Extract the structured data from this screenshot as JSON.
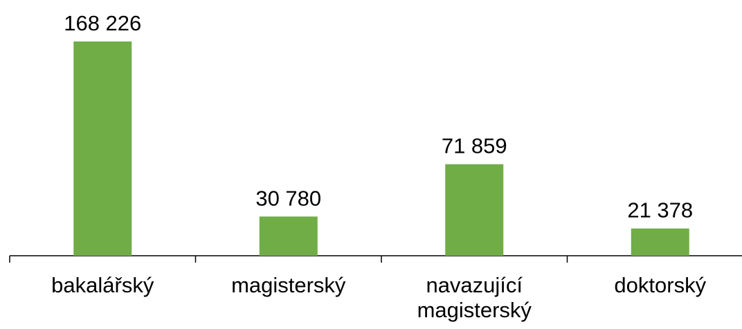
{
  "chart_data": {
    "type": "bar",
    "categories": [
      "bakalářský",
      "magisterský",
      "navazující magisterský",
      "doktorský"
    ],
    "values": [
      168226,
      30780,
      71859,
      21378
    ],
    "value_labels": [
      "168 226",
      "30 780",
      "71 859",
      "21 378"
    ],
    "color": "#70ad47"
  }
}
